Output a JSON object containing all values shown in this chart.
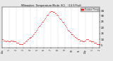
{
  "title": "Milwaukee  Temperature Mode: SCI    (13.5°Fsd)",
  "bg_color": "#e8e8e8",
  "plot_bg_color": "#ffffff",
  "dot_color": "#ff0000",
  "dot_size": 0.3,
  "ylim": [
    3,
    37
  ],
  "yticks": [
    5,
    10,
    15,
    20,
    25,
    30,
    34
  ],
  "ylabel_fontsize": 2.8,
  "title_fontsize": 2.5,
  "xlabel_fontsize": 2.2,
  "data_x": [
    0,
    1,
    2,
    3,
    4,
    5,
    6,
    7,
    8,
    9,
    10,
    11,
    12,
    13,
    14,
    15,
    16,
    17,
    18,
    19,
    20,
    21,
    22,
    23,
    24,
    25,
    26,
    27,
    28,
    29,
    30,
    31,
    32,
    33,
    34,
    35,
    36,
    37,
    38,
    39,
    40,
    41,
    42,
    43,
    44,
    45,
    46,
    47,
    48,
    49,
    50,
    51,
    52,
    53,
    54,
    55,
    56,
    57,
    58,
    59,
    60,
    61,
    62,
    63,
    64,
    65,
    66,
    67,
    68,
    69,
    70,
    71,
    72,
    73,
    74,
    75,
    76,
    77,
    78,
    79,
    80,
    81,
    82,
    83,
    84,
    85,
    86,
    87,
    88,
    89,
    90,
    91,
    92,
    93,
    94,
    95,
    96,
    97,
    98,
    99,
    100,
    101,
    102,
    103,
    104,
    105,
    106,
    107,
    108,
    109,
    110,
    111,
    112,
    113,
    114,
    115,
    116,
    117,
    118,
    119,
    120,
    121,
    122,
    123,
    124,
    125,
    126,
    127,
    128,
    129,
    130,
    131,
    132,
    133,
    134,
    135,
    136,
    137,
    138,
    139,
    140
  ],
  "data_y": [
    10,
    10,
    9,
    9,
    9,
    8,
    8,
    9,
    9,
    8,
    8,
    8,
    9,
    9,
    9,
    8,
    9,
    8,
    8,
    8,
    7,
    7,
    7,
    7,
    6,
    6,
    6,
    6,
    6,
    6,
    7,
    7,
    7,
    8,
    9,
    9,
    10,
    10,
    11,
    11,
    11,
    12,
    12,
    13,
    13,
    14,
    15,
    16,
    16,
    17,
    18,
    19,
    20,
    21,
    21,
    22,
    23,
    24,
    25,
    25,
    26,
    27,
    28,
    29,
    30,
    31,
    31,
    32,
    33,
    33,
    34,
    34,
    34,
    33,
    33,
    33,
    32,
    32,
    31,
    31,
    30,
    29,
    28,
    27,
    27,
    26,
    25,
    24,
    24,
    23,
    22,
    21,
    20,
    19,
    18,
    17,
    17,
    16,
    16,
    15,
    14,
    14,
    14,
    13,
    13,
    12,
    12,
    11,
    11,
    10,
    10,
    10,
    9,
    9,
    9,
    9,
    8,
    8,
    8,
    9,
    9,
    10,
    10,
    10,
    10,
    9,
    9,
    9,
    8,
    8,
    8,
    8,
    7,
    7,
    7,
    7,
    6,
    6,
    6,
    6,
    6
  ],
  "xtick_positions": [
    0,
    10,
    20,
    30,
    40,
    50,
    60,
    70,
    80,
    90,
    100,
    110,
    120,
    130,
    140
  ],
  "xtick_labels": [
    "12a",
    "1",
    "2",
    "3",
    "4",
    "5",
    "6",
    "7",
    "8",
    "9",
    "10",
    "11",
    "12p",
    "1",
    "2"
  ],
  "legend_label": "Outdoor Temp",
  "legend_color": "#ff0000"
}
